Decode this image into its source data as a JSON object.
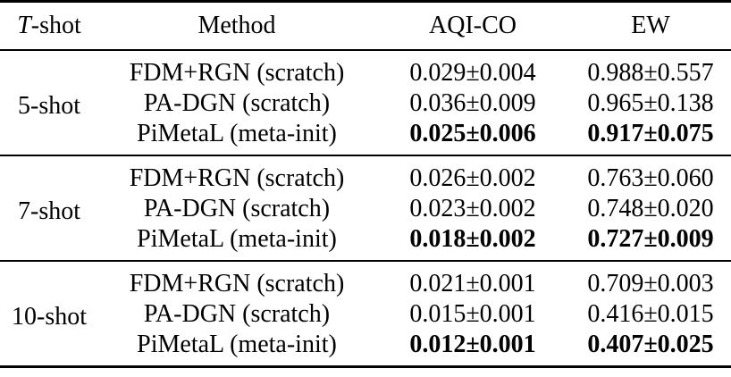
{
  "table": {
    "headers": {
      "shot_var": "T",
      "shot_suffix": "-shot",
      "method": "Method",
      "aqi": "AQI-CO",
      "ew": "EW"
    },
    "groups": [
      {
        "shot": "5-shot",
        "rows": [
          {
            "method": "FDM+RGN (scratch)",
            "aqi": "0.029±0.004",
            "ew": "0.988±0.557",
            "best": false
          },
          {
            "method": "PA-DGN (scratch)",
            "aqi": "0.036±0.009",
            "ew": "0.965±0.138",
            "best": false
          },
          {
            "method": "PiMetaL (meta-init)",
            "aqi": "0.025±0.006",
            "ew": "0.917±0.075",
            "best": true
          }
        ]
      },
      {
        "shot": "7-shot",
        "rows": [
          {
            "method": "FDM+RGN (scratch)",
            "aqi": "0.026±0.002",
            "ew": "0.763±0.060",
            "best": false
          },
          {
            "method": "PA-DGN (scratch)",
            "aqi": "0.023±0.002",
            "ew": "0.748±0.020",
            "best": false
          },
          {
            "method": "PiMetaL (meta-init)",
            "aqi": "0.018±0.002",
            "ew": "0.727±0.009",
            "best": true
          }
        ]
      },
      {
        "shot": "10-shot",
        "rows": [
          {
            "method": "FDM+RGN (scratch)",
            "aqi": "0.021±0.001",
            "ew": "0.709±0.003",
            "best": false
          },
          {
            "method": "PA-DGN (scratch)",
            "aqi": "0.015±0.001",
            "ew": "0.416±0.015",
            "best": false
          },
          {
            "method": "PiMetaL (meta-init)",
            "aqi": "0.012±0.001",
            "ew": "0.407±0.025",
            "best": true
          }
        ]
      }
    ]
  }
}
